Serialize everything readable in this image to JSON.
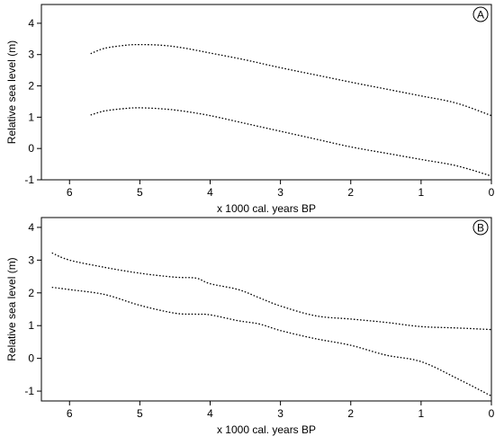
{
  "chart_data": [
    {
      "type": "line",
      "panel_label": "A",
      "xlabel": "x 1000 cal. years BP",
      "ylabel": "Relative sea level (m)",
      "xlim": [
        6.4,
        0
      ],
      "ylim": [
        -1,
        4.6
      ],
      "x_ticks": [
        6,
        5,
        4,
        3,
        2,
        1,
        0
      ],
      "y_ticks": [
        -1,
        0,
        1,
        2,
        3,
        4
      ],
      "grid": false,
      "series": [
        {
          "line_style": "dotted",
          "color": "#000000",
          "x": [
            5.7,
            5.5,
            5.2,
            5.0,
            4.7,
            4.4,
            4.0,
            3.5,
            3.0,
            2.5,
            2.0,
            1.5,
            1.0,
            0.5,
            0.0
          ],
          "y": [
            3.03,
            3.2,
            3.3,
            3.32,
            3.3,
            3.22,
            3.05,
            2.83,
            2.58,
            2.35,
            2.12,
            1.9,
            1.68,
            1.45,
            1.05
          ]
        },
        {
          "line_style": "dotted",
          "color": "#000000",
          "x": [
            5.7,
            5.5,
            5.2,
            5.0,
            4.7,
            4.4,
            4.0,
            3.5,
            3.0,
            2.5,
            2.0,
            1.5,
            1.0,
            0.5,
            0.0
          ],
          "y": [
            1.07,
            1.2,
            1.28,
            1.3,
            1.27,
            1.2,
            1.05,
            0.8,
            0.55,
            0.3,
            0.05,
            -0.15,
            -0.35,
            -0.55,
            -0.88
          ]
        }
      ]
    },
    {
      "type": "line",
      "panel_label": "B",
      "xlabel": "x 1000 cal. years BP",
      "ylabel": "Relative sea level (m)",
      "xlim": [
        6.4,
        0
      ],
      "ylim": [
        -1.3,
        4.3
      ],
      "x_ticks": [
        6,
        5,
        4,
        3,
        2,
        1,
        0
      ],
      "y_ticks": [
        -1,
        0,
        1,
        2,
        3,
        4
      ],
      "grid": false,
      "series": [
        {
          "line_style": "dotted",
          "color": "#000000",
          "x": [
            6.25,
            6.0,
            5.5,
            5.0,
            4.5,
            4.2,
            4.0,
            3.6,
            3.3,
            3.0,
            2.5,
            2.0,
            1.5,
            1.0,
            0.5,
            0.0
          ],
          "y": [
            3.22,
            3.0,
            2.78,
            2.6,
            2.48,
            2.45,
            2.28,
            2.1,
            1.85,
            1.6,
            1.3,
            1.2,
            1.1,
            0.97,
            0.93,
            0.88
          ]
        },
        {
          "line_style": "dotted",
          "color": "#000000",
          "x": [
            6.25,
            6.0,
            5.5,
            5.0,
            4.5,
            4.2,
            4.0,
            3.6,
            3.3,
            3.0,
            2.5,
            2.0,
            1.5,
            1.0,
            0.5,
            0.0
          ],
          "y": [
            2.17,
            2.1,
            1.95,
            1.62,
            1.38,
            1.35,
            1.33,
            1.15,
            1.05,
            0.85,
            0.6,
            0.4,
            0.1,
            -0.1,
            -0.6,
            -1.15
          ]
        }
      ]
    }
  ]
}
